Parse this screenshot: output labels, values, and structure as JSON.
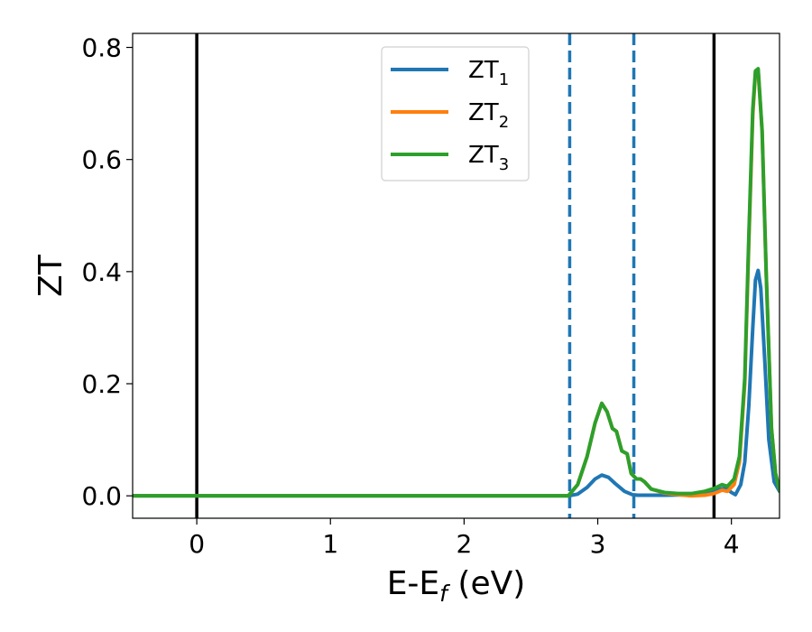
{
  "chart_data": {
    "type": "line",
    "xlabel": {
      "base": "E-E",
      "sub": "f",
      "suffix": " (eV)"
    },
    "ylabel": "ZT",
    "xlim": [
      -0.48,
      4.36
    ],
    "ylim": [
      -0.04,
      0.825
    ],
    "x_ticks": [
      0,
      1,
      2,
      3,
      4
    ],
    "y_ticks": [
      0.0,
      0.2,
      0.4,
      0.6,
      0.8
    ],
    "x_tick_labels": [
      "0",
      "1",
      "2",
      "3",
      "4"
    ],
    "y_tick_labels": [
      "0.0",
      "0.2",
      "0.4",
      "0.6",
      "0.8"
    ],
    "legend_position": "top-center",
    "grid": false,
    "vlines": [
      {
        "x": 0.0,
        "style": "solid",
        "color": "#000000"
      },
      {
        "x": 2.79,
        "style": "dashed",
        "color": "#1f77b4"
      },
      {
        "x": 3.27,
        "style": "dashed",
        "color": "#1f77b4"
      },
      {
        "x": 3.87,
        "style": "solid",
        "color": "#000000"
      }
    ],
    "series": [
      {
        "name": {
          "base": "ZT",
          "sub": "1"
        },
        "color": "#1f77b4",
        "x": [
          -0.48,
          2.78,
          2.85,
          2.92,
          2.98,
          3.03,
          3.08,
          3.13,
          3.2,
          3.26,
          3.3,
          3.5,
          3.7,
          3.85,
          3.92,
          3.96,
          4.0,
          4.03,
          4.07,
          4.1,
          4.13,
          4.16,
          4.18,
          4.2,
          4.22,
          4.25,
          4.28,
          4.32,
          4.36
        ],
        "y": [
          0.0,
          0.0,
          0.003,
          0.015,
          0.03,
          0.037,
          0.033,
          0.022,
          0.008,
          0.002,
          0.001,
          0.001,
          0.002,
          0.006,
          0.012,
          0.014,
          0.006,
          0.002,
          0.02,
          0.06,
          0.16,
          0.3,
          0.385,
          0.402,
          0.37,
          0.24,
          0.1,
          0.025,
          0.008
        ]
      },
      {
        "name": {
          "base": "ZT",
          "sub": "2"
        },
        "color": "#ff7f0e",
        "x": [
          -0.48,
          2.78,
          2.85,
          2.92,
          2.98,
          3.03,
          3.07,
          3.11,
          3.14,
          3.18,
          3.22,
          3.25,
          3.29,
          3.32,
          3.35,
          3.4,
          3.5,
          3.6,
          3.7,
          3.8,
          3.87,
          3.93,
          3.97,
          4.02,
          4.06,
          4.1,
          4.13,
          4.16,
          4.18,
          4.2,
          4.23,
          4.26,
          4.3,
          4.33,
          4.36
        ],
        "y": [
          0.0,
          0.0,
          0.02,
          0.07,
          0.13,
          0.165,
          0.15,
          0.12,
          0.115,
          0.08,
          0.075,
          0.04,
          0.03,
          0.03,
          0.025,
          0.012,
          0.005,
          0.002,
          0.0,
          0.001,
          0.004,
          0.01,
          0.008,
          0.02,
          0.06,
          0.2,
          0.45,
          0.68,
          0.755,
          0.76,
          0.65,
          0.4,
          0.12,
          0.04,
          0.01
        ]
      },
      {
        "name": {
          "base": "ZT",
          "sub": "3"
        },
        "color": "#2ca02c",
        "x": [
          -0.48,
          2.78,
          2.85,
          2.92,
          2.98,
          3.03,
          3.07,
          3.11,
          3.14,
          3.18,
          3.22,
          3.25,
          3.29,
          3.32,
          3.35,
          3.4,
          3.5,
          3.6,
          3.7,
          3.8,
          3.87,
          3.93,
          3.97,
          4.02,
          4.06,
          4.1,
          4.13,
          4.16,
          4.18,
          4.2,
          4.23,
          4.26,
          4.3,
          4.33,
          4.36
        ],
        "y": [
          0.0,
          0.0,
          0.02,
          0.07,
          0.13,
          0.165,
          0.15,
          0.12,
          0.115,
          0.08,
          0.075,
          0.04,
          0.03,
          0.03,
          0.025,
          0.012,
          0.006,
          0.004,
          0.004,
          0.008,
          0.013,
          0.02,
          0.017,
          0.03,
          0.07,
          0.21,
          0.46,
          0.69,
          0.758,
          0.762,
          0.65,
          0.4,
          0.12,
          0.04,
          0.01
        ]
      }
    ]
  }
}
